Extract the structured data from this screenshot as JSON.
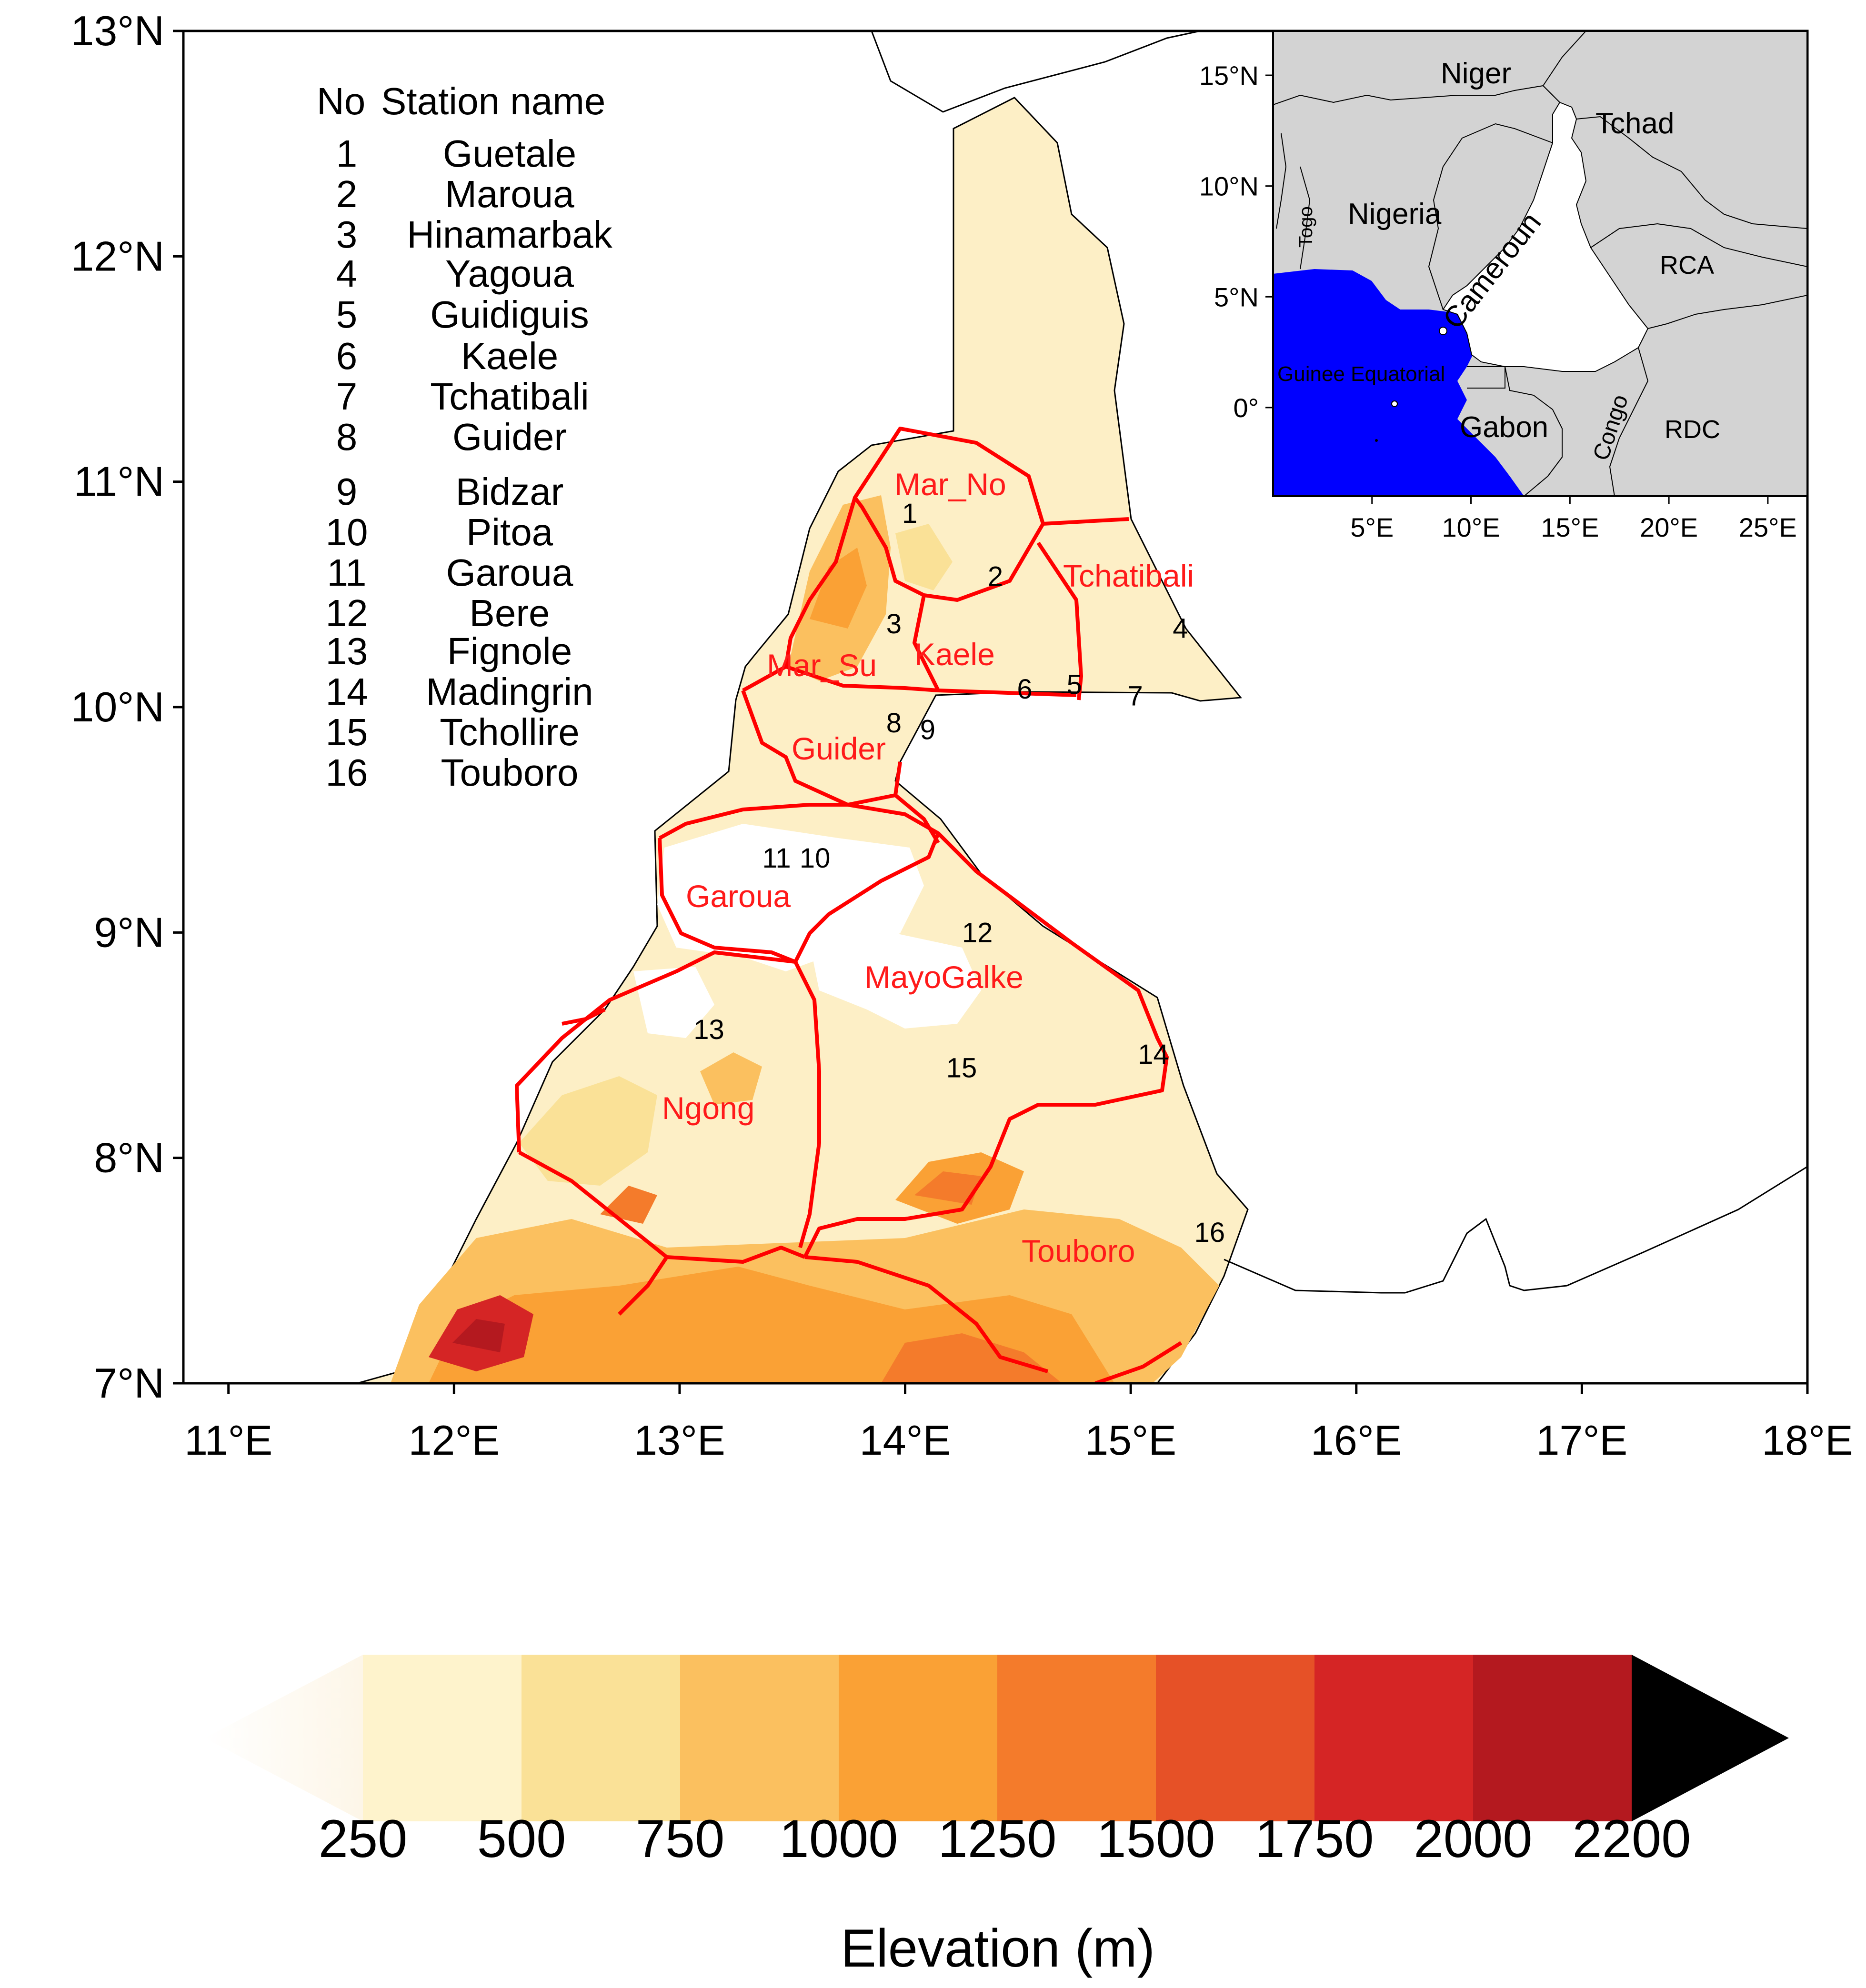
{
  "map": {
    "lat_ticks": [
      "13°N",
      "12°N",
      "11°N",
      "10°N",
      "9°N",
      "8°N",
      "7°N"
    ],
    "lon_ticks": [
      "11°E",
      "12°E",
      "13°E",
      "14°E",
      "15°E",
      "16°E",
      "17°E",
      "18°E"
    ],
    "lon_range": [
      10.8,
      18.0
    ],
    "lat_range": [
      7.0,
      13.0
    ]
  },
  "station_table": {
    "header_no": "No",
    "header_name": "Station name",
    "rows": [
      {
        "no": "1",
        "name": "Guetale"
      },
      {
        "no": "2",
        "name": "Maroua"
      },
      {
        "no": "3",
        "name": "Hinamarbak"
      },
      {
        "no": "4",
        "name": "Yagoua"
      },
      {
        "no": "5",
        "name": "Guidiguis"
      },
      {
        "no": "6",
        "name": "Kaele"
      },
      {
        "no": "7",
        "name": "Tchatibali"
      },
      {
        "no": "8",
        "name": "Guider"
      },
      {
        "no": "9",
        "name": "Bidzar"
      },
      {
        "no": "10",
        "name": "Pitoa"
      },
      {
        "no": "11",
        "name": "Garoua"
      },
      {
        "no": "12",
        "name": "Bere"
      },
      {
        "no": "13",
        "name": "Fignole"
      },
      {
        "no": "14",
        "name": "Madingrin"
      },
      {
        "no": "15",
        "name": "Tchollire"
      },
      {
        "no": "16",
        "name": "Touboro"
      }
    ]
  },
  "regions": [
    {
      "name": "Mar_No"
    },
    {
      "name": "Tchatibali"
    },
    {
      "name": "Mar_Su"
    },
    {
      "name": "Kaele"
    },
    {
      "name": "Guider"
    },
    {
      "name": "Garoua"
    },
    {
      "name": "MayoGalke"
    },
    {
      "name": "Ngong"
    },
    {
      "name": "Touboro"
    }
  ],
  "station_markers": [
    {
      "no": "1",
      "lon": 14.02,
      "lat": 10.86
    },
    {
      "no": "2",
      "lon": 14.4,
      "lat": 10.58
    },
    {
      "no": "3",
      "lon": 13.95,
      "lat": 10.37
    },
    {
      "no": "4",
      "lon": 15.22,
      "lat": 10.35
    },
    {
      "no": "5",
      "lon": 14.75,
      "lat": 10.1
    },
    {
      "no": "6",
      "lon": 14.53,
      "lat": 10.08
    },
    {
      "no": "7",
      "lon": 15.02,
      "lat": 10.05
    },
    {
      "no": "8",
      "lon": 13.95,
      "lat": 9.93
    },
    {
      "no": "9",
      "lon": 14.1,
      "lat": 9.9
    },
    {
      "no": "11",
      "lon": 13.43,
      "lat": 9.33
    },
    {
      "no": "10",
      "lon": 13.6,
      "lat": 9.33
    },
    {
      "no": "12",
      "lon": 14.32,
      "lat": 9.0
    },
    {
      "no": "13",
      "lon": 13.13,
      "lat": 8.57
    },
    {
      "no": "14",
      "lon": 15.1,
      "lat": 8.46
    },
    {
      "no": "15",
      "lon": 14.25,
      "lat": 8.4
    },
    {
      "no": "16",
      "lon": 15.35,
      "lat": 7.67
    }
  ],
  "inset": {
    "lat_ticks": [
      "15°N",
      "10°N",
      "5°N",
      "0°"
    ],
    "lon_ticks": [
      "5°E",
      "10°E",
      "15°E",
      "20°E",
      "25°E"
    ],
    "lon_range": [
      0.0,
      27.0
    ],
    "lat_range": [
      -4.0,
      17.0
    ],
    "countries": [
      {
        "name": "Niger"
      },
      {
        "name": "Tchad"
      },
      {
        "name": "Nigeria"
      },
      {
        "name": "Togo"
      },
      {
        "name": "Cameroun"
      },
      {
        "name": "RCA"
      },
      {
        "name": "Guinee Equatorial"
      },
      {
        "name": "Gabon"
      },
      {
        "name": "Congo"
      },
      {
        "name": "RDC"
      }
    ],
    "colors": {
      "land": "#d3d3d3",
      "ocean": "#0000ff",
      "cameroon": "#ffffff"
    }
  },
  "colorbar": {
    "title": "Elevation (m)",
    "labels": [
      "250",
      "500",
      "750",
      "1000",
      "1250",
      "1500",
      "1750",
      "2000",
      "2200"
    ],
    "colors": [
      "#fef3cc",
      "#fae197",
      "#fbc05f",
      "#faa135",
      "#f47b2b",
      "#e65127",
      "#d52525",
      "#b4191f",
      "#000000"
    ]
  },
  "colors": {
    "region_boundary": "#ff0000",
    "region_label": "#ff1a1a"
  }
}
